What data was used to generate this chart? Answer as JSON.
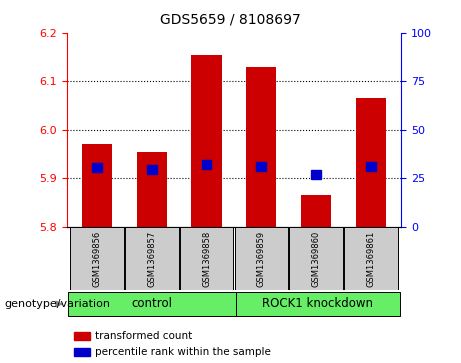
{
  "title": "GDS5659 / 8108697",
  "samples": [
    "GSM1369856",
    "GSM1369857",
    "GSM1369858",
    "GSM1369859",
    "GSM1369860",
    "GSM1369861"
  ],
  "bar_values": [
    5.97,
    5.955,
    6.155,
    6.13,
    5.865,
    6.065
  ],
  "percentile_values": [
    5.922,
    5.918,
    5.928,
    5.924,
    5.908,
    5.924
  ],
  "ylim_left": [
    5.8,
    6.2
  ],
  "ylim_right": [
    0,
    100
  ],
  "yticks_left": [
    5.8,
    5.9,
    6.0,
    6.1,
    6.2
  ],
  "yticks_right": [
    0,
    25,
    50,
    75,
    100
  ],
  "bar_color": "#cc0000",
  "percentile_color": "#0000cc",
  "bar_width": 0.55,
  "group1_label": "control",
  "group2_label": "ROCK1 knockdown",
  "group_color": "#66ee66",
  "genotype_label": "genotype/variation",
  "legend_red_label": "transformed count",
  "legend_blue_label": "percentile rank within the sample",
  "grid_yticks": [
    5.9,
    6.0,
    6.1
  ],
  "box_bg": "#cccccc",
  "plot_bg": "#ffffff",
  "title_fontsize": 10,
  "tick_fontsize": 8,
  "sample_fontsize": 6,
  "group_fontsize": 8.5,
  "legend_fontsize": 7.5,
  "genotype_fontsize": 8
}
